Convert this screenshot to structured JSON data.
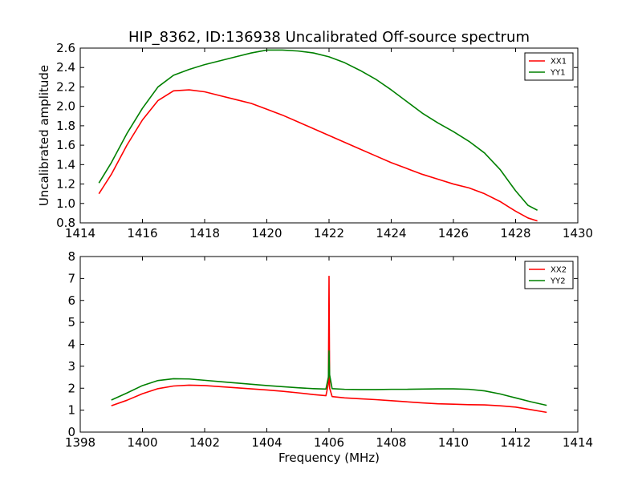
{
  "figure": {
    "title": "HIP_8362, ID:136938 Uncalibrated Off-source spectrum"
  },
  "colors": {
    "red": "#ff0000",
    "green": "#008000"
  },
  "chart_data": [
    {
      "type": "line",
      "ylabel": "Uncalibrated amplitude",
      "xlabel": "",
      "xlim": [
        1414,
        1430
      ],
      "ylim": [
        0.8,
        2.6
      ],
      "xticks": [
        "1414",
        "1416",
        "1418",
        "1420",
        "1422",
        "1424",
        "1426",
        "1428",
        "1430"
      ],
      "yticks": [
        "0.8",
        "1.0",
        "1.2",
        "1.4",
        "1.6",
        "1.8",
        "2.0",
        "2.2",
        "2.4",
        "2.6"
      ],
      "legend_position": "top-right",
      "series": [
        {
          "name": "XX1",
          "color": "#ff0000",
          "x": [
            1414.6,
            1415.0,
            1415.5,
            1416.0,
            1416.5,
            1417.0,
            1417.5,
            1418.0,
            1418.5,
            1419.0,
            1419.5,
            1420.0,
            1420.5,
            1421.0,
            1421.5,
            1422.0,
            1422.5,
            1423.0,
            1423.5,
            1424.0,
            1424.5,
            1425.0,
            1425.5,
            1426.0,
            1426.5,
            1427.0,
            1427.5,
            1428.0,
            1428.4,
            1428.7
          ],
          "y": [
            1.1,
            1.3,
            1.6,
            1.86,
            2.06,
            2.16,
            2.17,
            2.15,
            2.11,
            2.07,
            2.03,
            1.97,
            1.91,
            1.84,
            1.77,
            1.7,
            1.63,
            1.56,
            1.49,
            1.42,
            1.36,
            1.3,
            1.25,
            1.2,
            1.16,
            1.1,
            1.02,
            0.92,
            0.85,
            0.82
          ]
        },
        {
          "name": "YY1",
          "color": "#008000",
          "x": [
            1414.6,
            1415.0,
            1415.5,
            1416.0,
            1416.5,
            1417.0,
            1417.5,
            1418.0,
            1418.5,
            1419.0,
            1419.5,
            1420.0,
            1420.5,
            1421.0,
            1421.5,
            1422.0,
            1422.5,
            1423.0,
            1423.5,
            1424.0,
            1424.5,
            1425.0,
            1425.5,
            1426.0,
            1426.5,
            1427.0,
            1427.5,
            1428.0,
            1428.4,
            1428.7
          ],
          "y": [
            1.21,
            1.42,
            1.72,
            1.98,
            2.2,
            2.32,
            2.38,
            2.43,
            2.47,
            2.51,
            2.55,
            2.58,
            2.58,
            2.57,
            2.55,
            2.51,
            2.45,
            2.37,
            2.28,
            2.17,
            2.05,
            1.93,
            1.83,
            1.74,
            1.64,
            1.52,
            1.35,
            1.13,
            0.98,
            0.93
          ]
        }
      ]
    },
    {
      "type": "line",
      "ylabel": "",
      "xlabel": "Frequency (MHz)",
      "xlim": [
        1398,
        1414
      ],
      "ylim": [
        0,
        8
      ],
      "xticks": [
        "1398",
        "1400",
        "1402",
        "1404",
        "1406",
        "1408",
        "1410",
        "1412",
        "1414"
      ],
      "yticks": [
        "0",
        "1",
        "2",
        "3",
        "4",
        "5",
        "6",
        "7",
        "8"
      ],
      "legend_position": "top-right",
      "series": [
        {
          "name": "XX2",
          "color": "#ff0000",
          "x": [
            1399.0,
            1399.5,
            1400.0,
            1400.5,
            1401.0,
            1401.5,
            1402.0,
            1402.5,
            1403.0,
            1403.5,
            1404.0,
            1404.5,
            1405.0,
            1405.5,
            1405.9,
            1405.98,
            1406.0,
            1406.02,
            1406.1,
            1406.5,
            1407.0,
            1407.5,
            1408.0,
            1408.5,
            1409.0,
            1409.5,
            1410.0,
            1410.5,
            1411.0,
            1411.5,
            1412.0,
            1412.5,
            1413.0
          ],
          "y": [
            1.2,
            1.45,
            1.75,
            1.98,
            2.1,
            2.14,
            2.12,
            2.07,
            2.02,
            1.97,
            1.92,
            1.86,
            1.79,
            1.71,
            1.66,
            2.2,
            7.1,
            2.0,
            1.62,
            1.56,
            1.52,
            1.48,
            1.43,
            1.38,
            1.33,
            1.29,
            1.27,
            1.25,
            1.24,
            1.2,
            1.14,
            1.02,
            0.9
          ]
        },
        {
          "name": "YY2",
          "color": "#008000",
          "x": [
            1399.0,
            1399.5,
            1400.0,
            1400.5,
            1401.0,
            1401.5,
            1402.0,
            1402.5,
            1403.0,
            1403.5,
            1404.0,
            1404.5,
            1405.0,
            1405.5,
            1405.9,
            1405.98,
            1406.0,
            1406.02,
            1406.1,
            1406.5,
            1407.0,
            1407.5,
            1408.0,
            1408.5,
            1409.0,
            1409.5,
            1410.0,
            1410.5,
            1411.0,
            1411.5,
            1412.0,
            1412.5,
            1413.0
          ],
          "y": [
            1.46,
            1.78,
            2.12,
            2.35,
            2.43,
            2.42,
            2.36,
            2.3,
            2.24,
            2.18,
            2.12,
            2.07,
            2.02,
            1.98,
            1.96,
            2.5,
            3.7,
            2.6,
            1.98,
            1.95,
            1.94,
            1.94,
            1.95,
            1.95,
            1.96,
            1.97,
            1.97,
            1.95,
            1.88,
            1.74,
            1.56,
            1.38,
            1.22
          ]
        }
      ]
    }
  ]
}
